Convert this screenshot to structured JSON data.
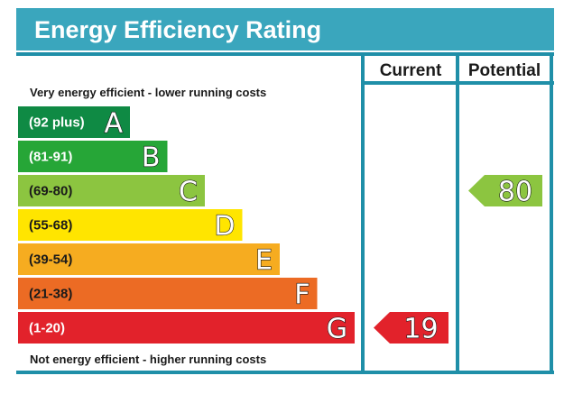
{
  "title": "Energy Efficiency Rating",
  "columns": {
    "current": "Current",
    "potential": "Potential"
  },
  "captions": {
    "top": "Very energy efficient - lower running costs",
    "bottom": "Not energy efficient - higher running costs"
  },
  "colors": {
    "title_bar": "#3aa6bd",
    "frame": "#1f8fa8"
  },
  "bands": [
    {
      "letter": "A",
      "range": "(92 plus)",
      "color": "#0f8a44",
      "text_color": "#ffffff"
    },
    {
      "letter": "B",
      "range": "(81-91)",
      "color": "#26a637",
      "text_color": "#ffffff"
    },
    {
      "letter": "C",
      "range": "(69-80)",
      "color": "#8cc540",
      "text_color": "#1a1a1a"
    },
    {
      "letter": "D",
      "range": "(55-68)",
      "color": "#ffe500",
      "text_color": "#1a1a1a"
    },
    {
      "letter": "E",
      "range": "(39-54)",
      "color": "#f6ac20",
      "text_color": "#1a1a1a"
    },
    {
      "letter": "F",
      "range": "(21-38)",
      "color": "#ec6b24",
      "text_color": "#1a1a1a"
    },
    {
      "letter": "G",
      "range": "(1-20)",
      "color": "#e2222b",
      "text_color": "#ffffff"
    }
  ],
  "ratings": {
    "current": {
      "value": 19,
      "band": "G",
      "color": "#e2222b"
    },
    "potential": {
      "value": 80,
      "band": "C",
      "color": "#8cc540"
    }
  }
}
